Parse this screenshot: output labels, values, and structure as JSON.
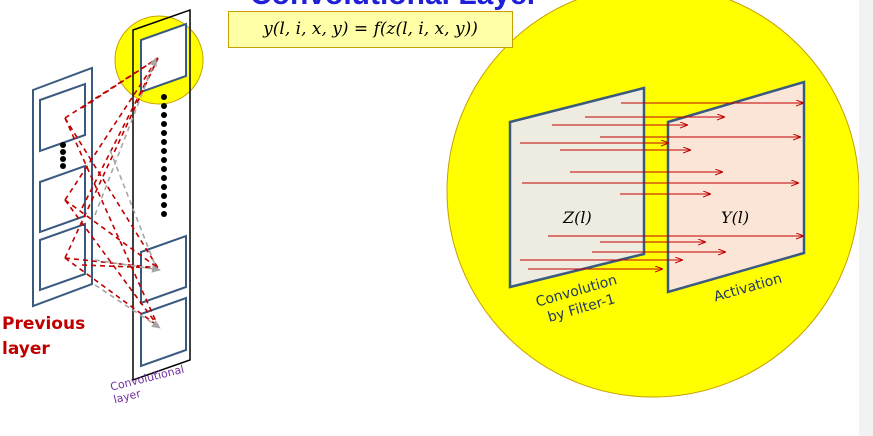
{
  "title_fragment": "Convolutional Layer",
  "formula": "y(l, i, x, y) = f(z(l, i, x, y))",
  "labels": {
    "previous_layer_line1": "Previous",
    "previous_layer_line2": "layer",
    "convolutional_layer_line1": "Convolutional",
    "convolutional_layer_line2": "layer",
    "z_map": "Z(l)",
    "y_map": "Y(l)",
    "convolution_line1": "Convolution",
    "convolution_line2": "by Filter-1",
    "activation": "Activation"
  },
  "colors": {
    "highlight_yellow": "#ffff00",
    "map_border": "#3a5a80",
    "arrow_red": "#c00000",
    "link_gray": "#a6a6a6",
    "text_red": "#c00000",
    "text_purple": "#7030a0",
    "title_blue": "#1f1fd8"
  }
}
